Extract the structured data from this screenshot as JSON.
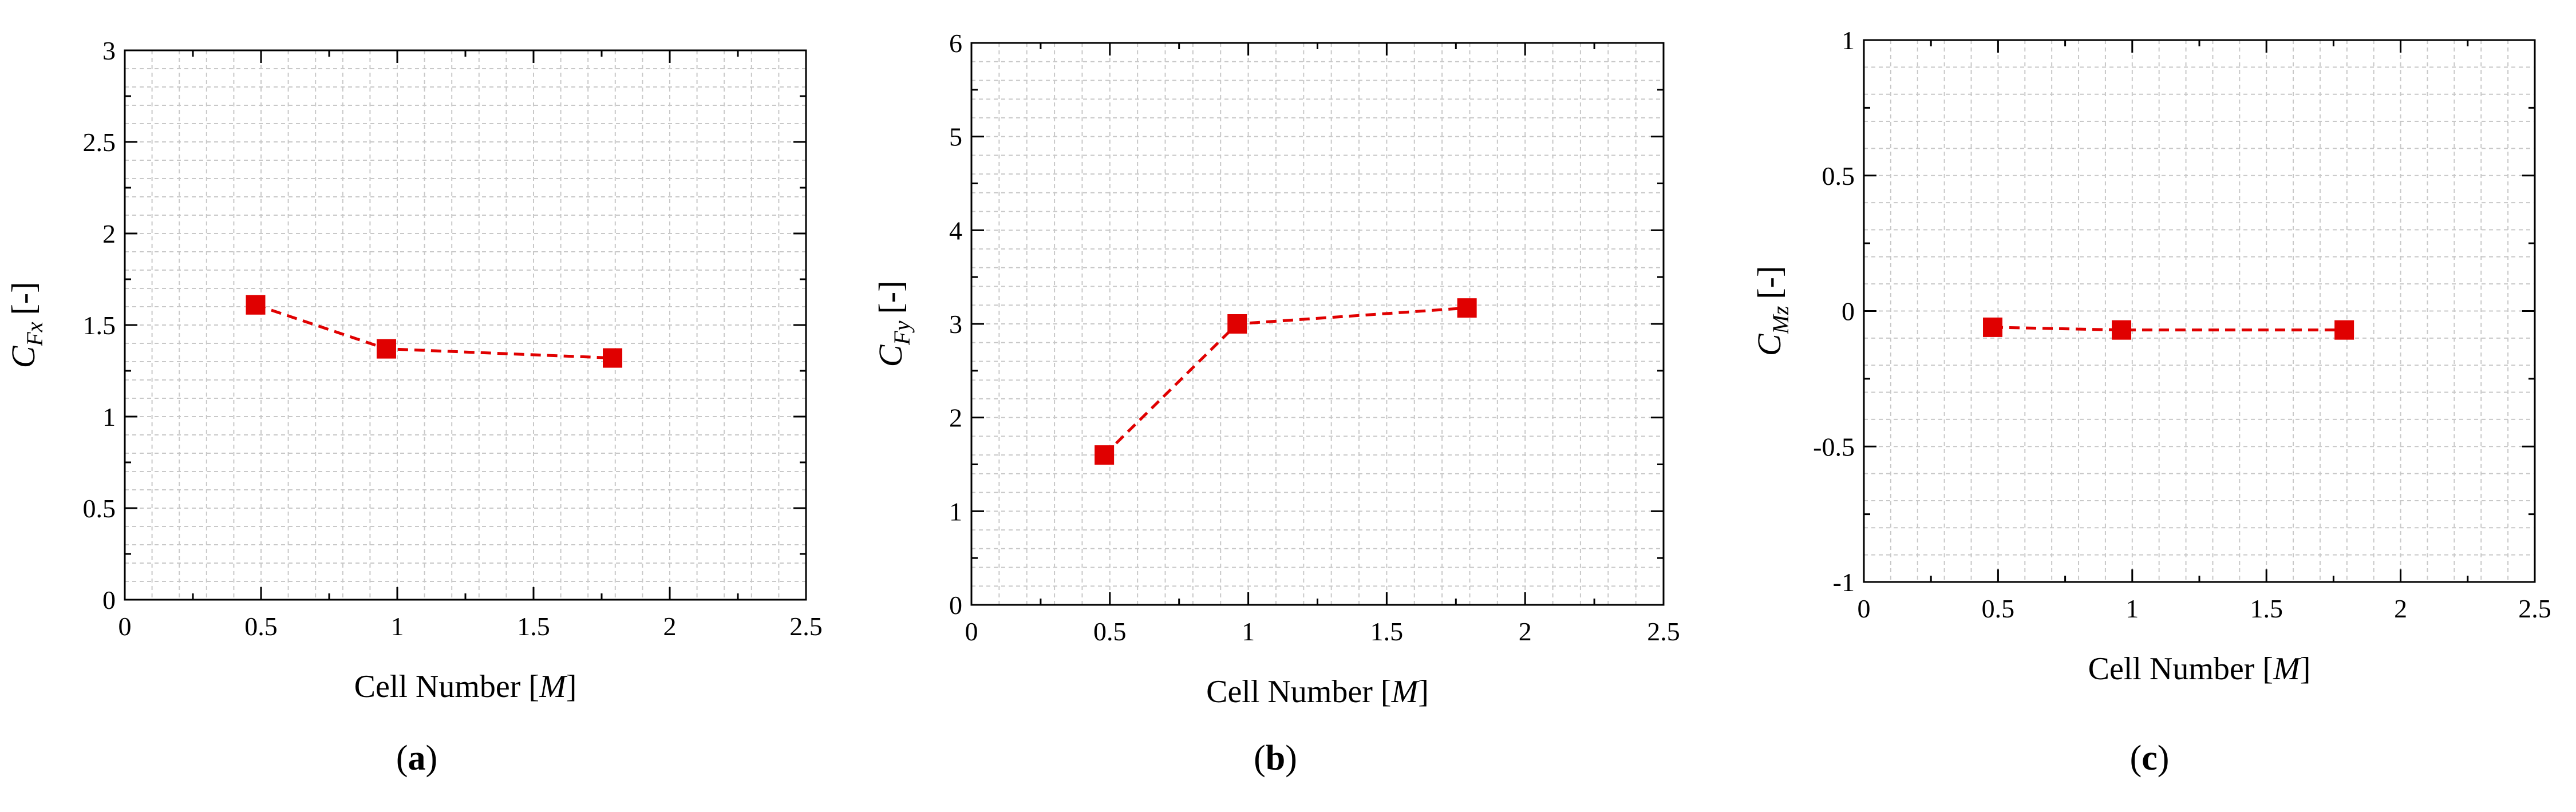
{
  "figure": {
    "style": {
      "marker_color": "#e00000",
      "line_color": "#e00000",
      "grid_color": "#c8c8c8",
      "axis_color": "#000000"
    }
  },
  "chart_data": [
    {
      "type": "line",
      "panel_label": "(a)",
      "panel_letter": "a",
      "xlabel": "Cell Number [M]",
      "xlabel_main": "Cell Number [",
      "xlabel_unit": "M",
      "xlabel_close": "]",
      "ylabel": "C_Fx [-]",
      "ylabel_symbol": "C",
      "ylabel_subscript": "Fx",
      "ylabel_unit": "[-]",
      "xlim": [
        0,
        2.5
      ],
      "ylim": [
        0,
        3
      ],
      "xticks": [
        0,
        0.5,
        1,
        1.5,
        2,
        2.5
      ],
      "xtick_labels": [
        "0",
        "0.5",
        "1",
        "1.5",
        "2",
        "2.5"
      ],
      "yticks": [
        0,
        0.5,
        1,
        1.5,
        2,
        2.5,
        3
      ],
      "ytick_labels": [
        "0",
        "0.5",
        "1",
        "1.5",
        "2",
        "2.5",
        "3"
      ],
      "grid": true,
      "series": [
        {
          "name": "C_Fx",
          "x": [
            0.48,
            0.96,
            1.79
          ],
          "y": [
            1.61,
            1.37,
            1.32
          ]
        }
      ]
    },
    {
      "type": "line",
      "panel_label": "(b)",
      "panel_letter": "b",
      "xlabel": "Cell Number [M]",
      "xlabel_main": "Cell Number [",
      "xlabel_unit": "M",
      "xlabel_close": "]",
      "ylabel": "C_Fy [-]",
      "ylabel_symbol": "C",
      "ylabel_subscript": "Fy",
      "ylabel_unit": "[-]",
      "xlim": [
        0,
        2.5
      ],
      "ylim": [
        0,
        6
      ],
      "xticks": [
        0,
        0.5,
        1,
        1.5,
        2,
        2.5
      ],
      "xtick_labels": [
        "0",
        "0.5",
        "1",
        "1.5",
        "2",
        "2.5"
      ],
      "yticks": [
        0,
        1,
        2,
        3,
        4,
        5,
        6
      ],
      "ytick_labels": [
        "0",
        "1",
        "2",
        "3",
        "4",
        "5",
        "6"
      ],
      "grid": true,
      "series": [
        {
          "name": "C_Fy",
          "x": [
            0.48,
            0.96,
            1.79
          ],
          "y": [
            1.6,
            3.0,
            3.17
          ]
        }
      ]
    },
    {
      "type": "line",
      "panel_label": "(c)",
      "panel_letter": "c",
      "xlabel": "Cell Number [M]",
      "xlabel_main": "Cell Number [",
      "xlabel_unit": "M",
      "xlabel_close": "]",
      "ylabel": "C_Mz [-]",
      "ylabel_symbol": "C",
      "ylabel_subscript": "Mz",
      "ylabel_unit": "[-]",
      "xlim": [
        0,
        2.5
      ],
      "ylim": [
        -1,
        1
      ],
      "xticks": [
        0,
        0.5,
        1,
        1.5,
        2,
        2.5
      ],
      "xtick_labels": [
        "0",
        "0.5",
        "1",
        "1.5",
        "2",
        "2.5"
      ],
      "yticks": [
        -1,
        -0.5,
        0,
        0.5,
        1
      ],
      "ytick_labels": [
        "-1",
        "-0.5",
        "0",
        "0.5",
        "1"
      ],
      "grid": true,
      "series": [
        {
          "name": "C_Mz",
          "x": [
            0.48,
            0.96,
            1.79
          ],
          "y": [
            -0.06,
            -0.07,
            -0.07
          ]
        }
      ]
    }
  ]
}
